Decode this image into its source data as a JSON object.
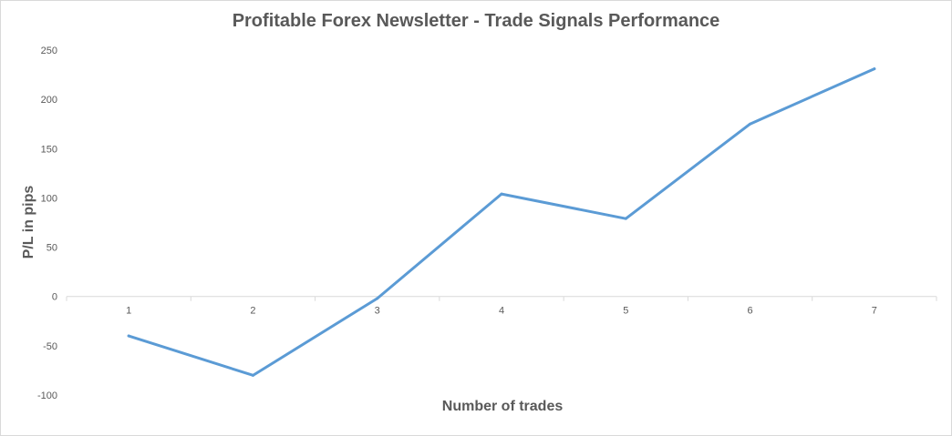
{
  "chart_data": {
    "type": "line",
    "title": "Profitable Forex Newsletter - Trade Signals Performance",
    "xlabel": "Number of trades",
    "ylabel": "P/L in pips",
    "categories": [
      "1",
      "2",
      "3",
      "4",
      "5",
      "6",
      "7"
    ],
    "series": [
      {
        "values": [
          -40,
          -80,
          -2,
          104,
          79,
          175,
          231
        ]
      }
    ],
    "ylim": [
      -100,
      250
    ],
    "yticks": [
      250,
      200,
      150,
      100,
      50,
      0,
      -50,
      -100
    ],
    "grid": false,
    "legend": "none",
    "line_color": "#5b9bd5"
  }
}
